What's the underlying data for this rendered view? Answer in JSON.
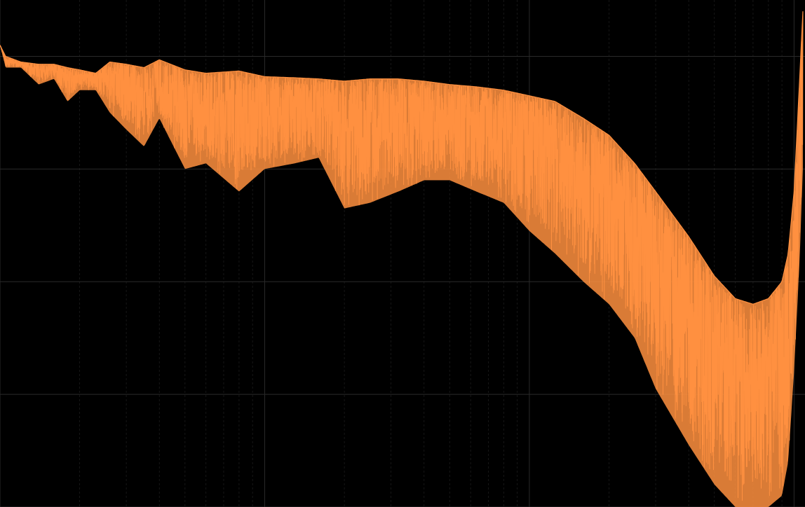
{
  "chart_data": {
    "type": "line",
    "title": "",
    "xlabel": "",
    "ylabel": "",
    "x_scale": "log",
    "xlim": [
      1,
      1100
    ],
    "ylim": [
      0,
      4.5
    ],
    "grid": true,
    "legend": "none",
    "colors": {
      "background": "#000000",
      "series": "#ff9040",
      "grid_major": "#2a2a2a",
      "grid_minor": "#1c1c1c"
    },
    "series": [
      {
        "name": "",
        "style": "dense-noisy-spectrum",
        "envelope_x": [
          1.0,
          1.05,
          1.2,
          1.4,
          1.6,
          1.8,
          2.0,
          2.3,
          2.6,
          3.0,
          3.5,
          4.0,
          5.0,
          6.0,
          8.0,
          10,
          13,
          16,
          20,
          25,
          32,
          40,
          50,
          63,
          80,
          100,
          125,
          160,
          200,
          250,
          300,
          400,
          500,
          600,
          700,
          800,
          900,
          950,
          1000,
          1050,
          1080
        ],
        "upper": [
          4.1,
          4.0,
          3.95,
          3.93,
          3.93,
          3.9,
          3.88,
          3.85,
          3.95,
          3.93,
          3.9,
          3.97,
          3.88,
          3.85,
          3.87,
          3.82,
          3.81,
          3.8,
          3.78,
          3.8,
          3.8,
          3.78,
          3.75,
          3.73,
          3.7,
          3.65,
          3.6,
          3.45,
          3.3,
          3.05,
          2.8,
          2.4,
          2.05,
          1.85,
          1.8,
          1.85,
          2.0,
          2.25,
          2.8,
          3.8,
          4.4
        ],
        "lower": [
          4.1,
          3.9,
          3.9,
          3.75,
          3.8,
          3.6,
          3.7,
          3.7,
          3.5,
          3.35,
          3.2,
          3.45,
          3.0,
          3.05,
          2.8,
          3.0,
          3.05,
          3.1,
          2.65,
          2.7,
          2.8,
          2.9,
          2.9,
          2.8,
          2.7,
          2.45,
          2.25,
          2.0,
          1.8,
          1.5,
          1.05,
          0.55,
          0.2,
          0.0,
          0.0,
          0.0,
          0.1,
          0.4,
          1.2,
          2.2,
          3.0
        ]
      }
    ]
  }
}
